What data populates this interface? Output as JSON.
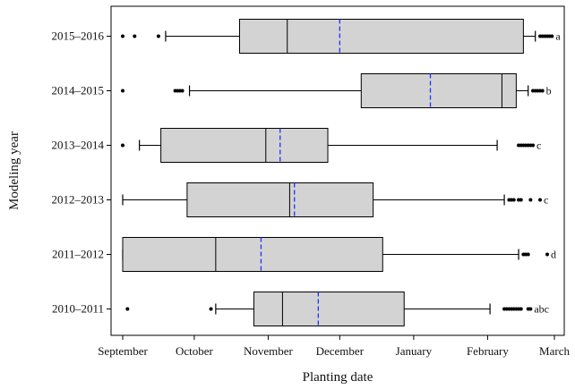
{
  "chart_data": {
    "type": "box",
    "title": "",
    "xlabel": "Planting date",
    "ylabel": "Modeling year",
    "x_ticks": [
      "September",
      "October",
      "November",
      "December",
      "January",
      "February",
      "March"
    ],
    "x_tick_days": [
      0,
      30,
      61,
      91,
      122,
      153,
      181
    ],
    "xlim": [
      0,
      181
    ],
    "grid": false,
    "legend": "none",
    "colors": {
      "box_fill": "#d3d3d3",
      "box_stroke": "#000000",
      "median": "#000000",
      "mean": "#1a33ff",
      "outlier": "#000000"
    },
    "boxes": [
      {
        "category": "2015–2016",
        "letter": "a",
        "whisker_low": 18,
        "q1": 49,
        "median": 69,
        "mean": 91,
        "q3": 168,
        "whisker_high": 173,
        "outliers": [
          0,
          5,
          15,
          175,
          176,
          177,
          178,
          179,
          180
        ]
      },
      {
        "category": "2014–2015",
        "letter": "b",
        "whisker_low": 28,
        "q1": 100,
        "median": 159,
        "mean": 129,
        "q3": 165,
        "whisker_high": 170,
        "outliers": [
          0,
          22,
          23,
          24,
          25,
          172,
          173,
          174,
          175,
          176
        ]
      },
      {
        "category": "2013–2014",
        "letter": "c",
        "whisker_low": 7,
        "q1": 16,
        "median": 60,
        "mean": 66,
        "q3": 86,
        "whisker_high": 157,
        "outliers": [
          0,
          166,
          167,
          168,
          169,
          170,
          171,
          172
        ]
      },
      {
        "category": "2012–2013",
        "letter": "c",
        "whisker_low": 0,
        "q1": 27,
        "median": 70,
        "mean": 72,
        "q3": 105,
        "whisker_high": 160,
        "outliers": [
          162,
          163,
          164,
          166,
          167,
          171,
          175
        ]
      },
      {
        "category": "2011–2012",
        "letter": "d",
        "whisker_low": 0,
        "q1": 0,
        "median": 39,
        "mean": 58,
        "q3": 109,
        "whisker_high": 166,
        "outliers": [
          168,
          169,
          170,
          178
        ]
      },
      {
        "category": "2010–2011",
        "letter": "abc",
        "whisker_low": 39,
        "q1": 55,
        "median": 67,
        "mean": 82,
        "q3": 118,
        "whisker_high": 154,
        "outliers": [
          2,
          37,
          160,
          161,
          162,
          163,
          164,
          165,
          166,
          167,
          170,
          171
        ]
      }
    ]
  }
}
